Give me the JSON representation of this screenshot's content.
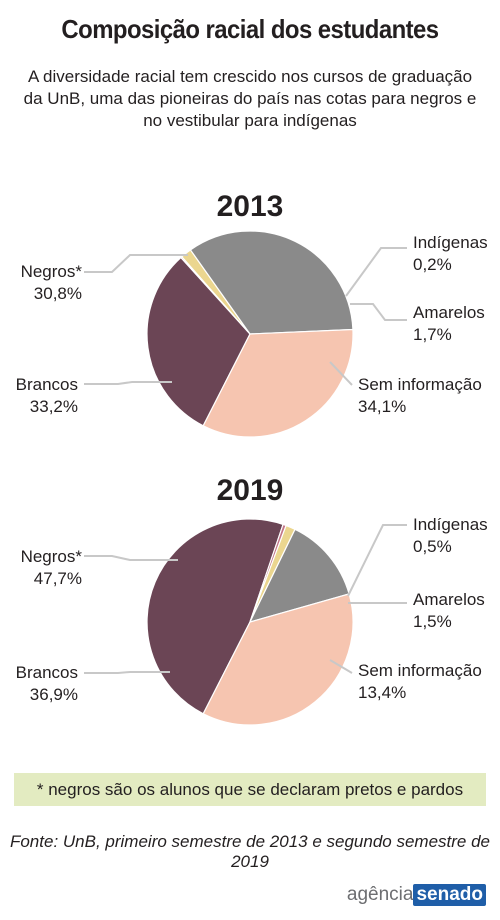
{
  "title": "Composição racial dos estudantes",
  "subtitle": "A diversidade racial tem crescido nos cursos de graduação da UnB, uma das pioneiras do país nas cotas para negros e no vestibular para indígenas",
  "note": "* negros são os alunos que se declaram pretos e pardos",
  "source": "Fonte: UnB, primeiro semestre de 2013 e segundo semestre de 2019",
  "logo": {
    "part1": "agência",
    "part2": "senado"
  },
  "colors": {
    "Negros*": "#6b4555",
    "Indígenas": "#c27688",
    "Amarelos": "#ebd68f",
    "Sem informação": "#8a8a8a",
    "Brancos": "#f6c5b0"
  },
  "chart_data": [
    {
      "type": "pie",
      "title": "2013",
      "slices": [
        {
          "label": "Negros*",
          "value": 30.8,
          "display": "30,8%"
        },
        {
          "label": "Indígenas",
          "value": 0.2,
          "display": "0,2%"
        },
        {
          "label": "Amarelos",
          "value": 1.7,
          "display": "1,7%"
        },
        {
          "label": "Sem informação",
          "value": 34.1,
          "display": "34,1%"
        },
        {
          "label": "Brancos",
          "value": 33.2,
          "display": "33,2%"
        }
      ]
    },
    {
      "type": "pie",
      "title": "2019",
      "slices": [
        {
          "label": "Negros*",
          "value": 47.7,
          "display": "47,7%"
        },
        {
          "label": "Indígenas",
          "value": 0.5,
          "display": "0,5%"
        },
        {
          "label": "Amarelos",
          "value": 1.5,
          "display": "1,5%"
        },
        {
          "label": "Sem informação",
          "value": 13.4,
          "display": "13,4%"
        },
        {
          "label": "Brancos",
          "value": 36.9,
          "display": "36,9%"
        }
      ]
    }
  ]
}
